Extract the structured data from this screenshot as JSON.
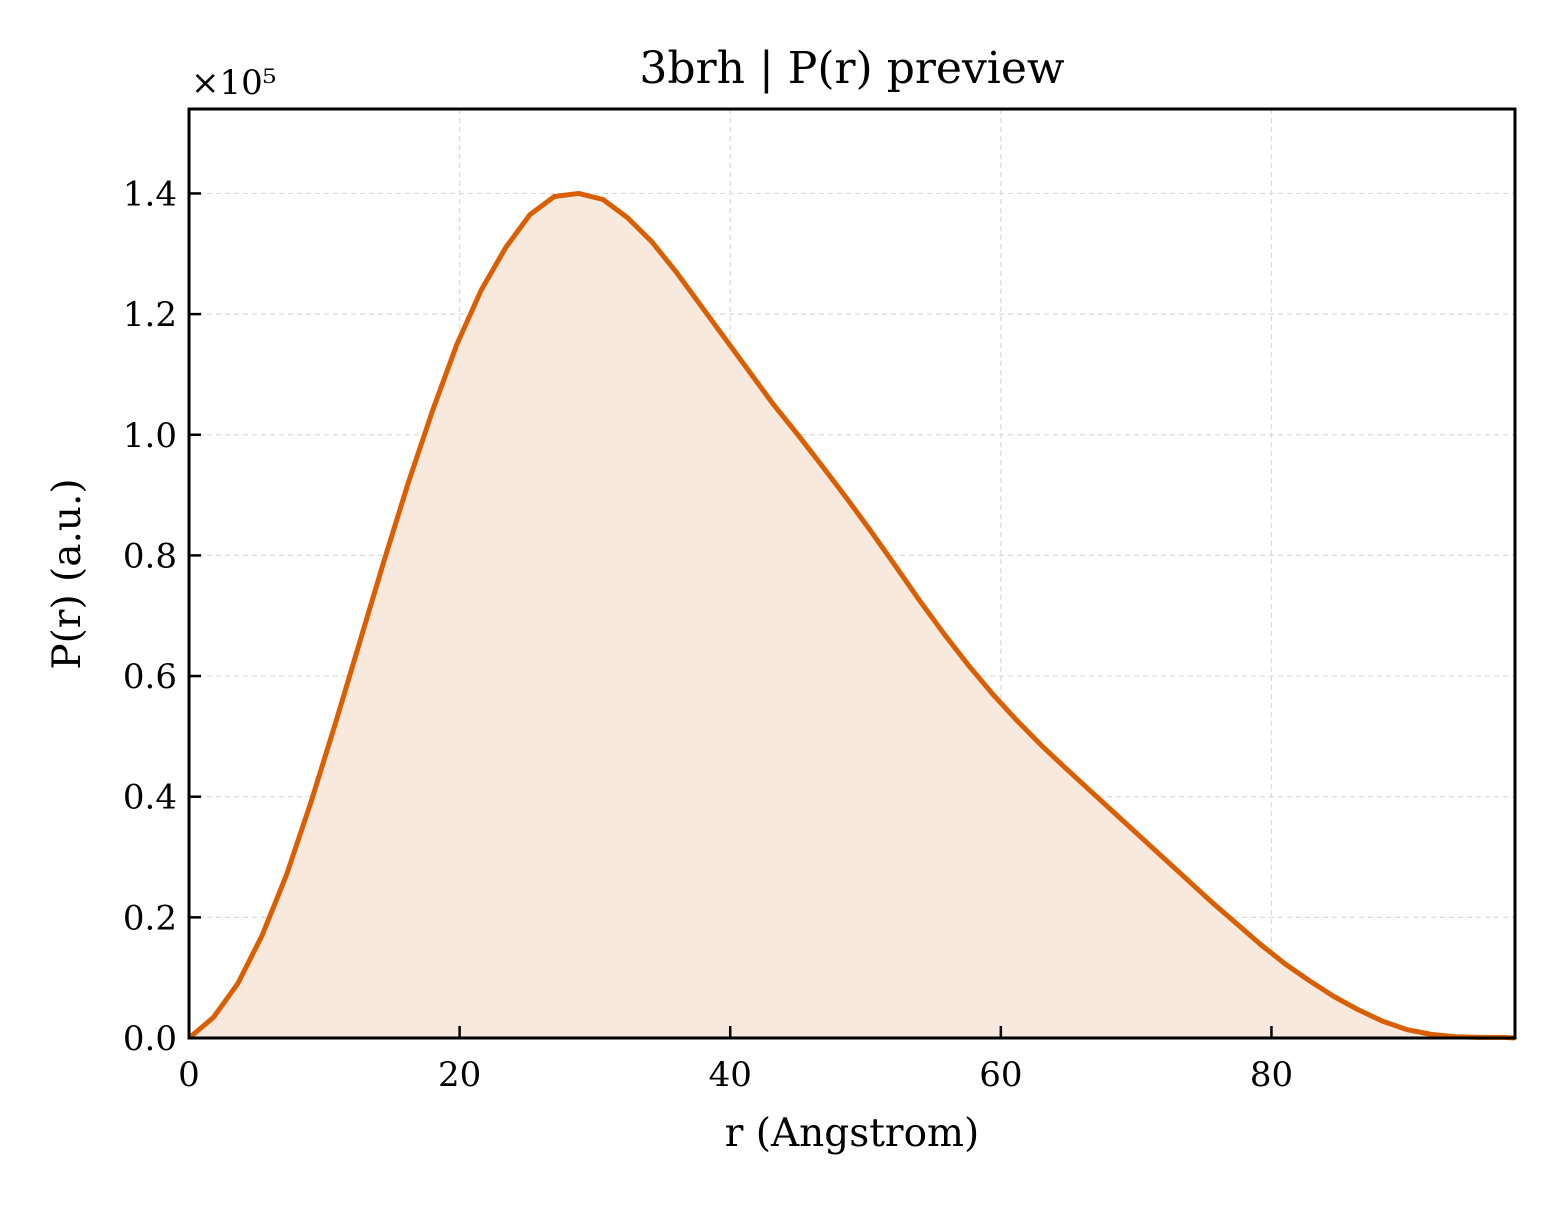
{
  "chart_data": {
    "type": "area",
    "title": "3brh | P(r) preview",
    "xlabel": "r (Angstrom)",
    "ylabel": "P(r) (a.u.)",
    "y_offset_text": "×10⁵",
    "y_scale_factor": 100000,
    "xlim": [
      0,
      98
    ],
    "ylim": [
      0,
      1.54
    ],
    "x_ticks": [
      0,
      20,
      40,
      60,
      80
    ],
    "x_tick_labels": [
      "0",
      "20",
      "40",
      "60",
      "80"
    ],
    "y_ticks": [
      0.0,
      0.2,
      0.4,
      0.6,
      0.8,
      1.0,
      1.2,
      1.4
    ],
    "y_tick_labels": [
      "0.0",
      "0.2",
      "0.4",
      "0.6",
      "0.8",
      "1.0",
      "1.2",
      "1.4"
    ],
    "grid": true,
    "colors": {
      "line": "#d95f02",
      "fill": "#f8e9df",
      "grid": "#d9d9d9",
      "frame": "#000000"
    },
    "series": [
      {
        "x": [
          0,
          1.8,
          3.6,
          5.4,
          7.2,
          9.0,
          10.8,
          12.6,
          14.4,
          16.2,
          18.0,
          19.8,
          21.6,
          23.4,
          25.2,
          27.0,
          28.8,
          30.6,
          32.4,
          34.2,
          36.0,
          37.8,
          39.6,
          41.4,
          43.2,
          45.0,
          46.8,
          48.6,
          50.4,
          52.2,
          54.0,
          55.8,
          57.6,
          59.4,
          61.2,
          63.0,
          64.8,
          66.6,
          68.4,
          70.2,
          72.0,
          73.8,
          75.6,
          77.4,
          79.2,
          81.0,
          82.8,
          84.6,
          86.4,
          88.2,
          90.0,
          91.8,
          93.6,
          95.4,
          97.2,
          98.0
        ],
        "y": [
          0.0,
          0.034,
          0.09,
          0.17,
          0.27,
          0.39,
          0.52,
          0.655,
          0.79,
          0.92,
          1.04,
          1.15,
          1.24,
          1.31,
          1.365,
          1.395,
          1.4,
          1.39,
          1.36,
          1.32,
          1.27,
          1.215,
          1.16,
          1.105,
          1.05,
          1.0,
          0.948,
          0.895,
          0.84,
          0.783,
          0.725,
          0.67,
          0.618,
          0.57,
          0.526,
          0.485,
          0.447,
          0.41,
          0.373,
          0.336,
          0.299,
          0.262,
          0.225,
          0.19,
          0.155,
          0.123,
          0.095,
          0.069,
          0.047,
          0.028,
          0.014,
          0.006,
          0.002,
          0.001,
          0.001,
          0.0
        ]
      }
    ]
  }
}
